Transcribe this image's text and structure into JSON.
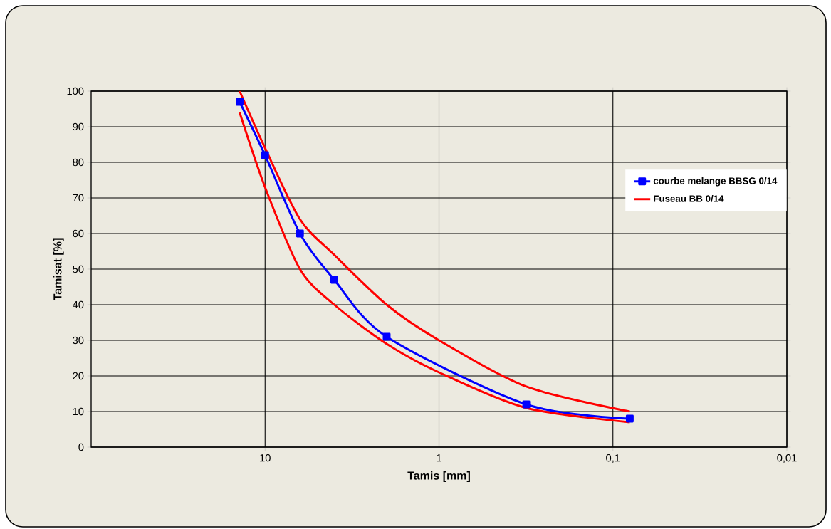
{
  "chart_data": {
    "type": "line",
    "xlabel": "Tamis [mm]",
    "ylabel": "Tamisat [%]",
    "xlim": [
      100,
      0.01
    ],
    "ylim": [
      0,
      100
    ],
    "log": "x",
    "xticks": [
      10,
      1,
      {
        "value": 0.1,
        "label": "0,1"
      },
      {
        "value": 0.01,
        "label": "0,01"
      }
    ],
    "yticks": [
      0,
      10,
      20,
      30,
      40,
      50,
      60,
      70,
      80,
      90,
      100
    ],
    "grid": true,
    "legend": "right",
    "series": [
      {
        "name": "courbe melange  BBSG 0/14",
        "color": "#0000ff",
        "marker": "square",
        "x": [
          14,
          10,
          6.3,
          4,
          2,
          0.315,
          0.08
        ],
        "values": [
          97,
          82,
          60,
          47,
          31,
          12,
          8
        ]
      },
      {
        "name": "Fuseau  BB 0/14",
        "color": "#ff0000",
        "marker": "none",
        "x": [
          14,
          10,
          6.3,
          4,
          2,
          1,
          0.315,
          0.08
        ],
        "values": [
          100,
          84,
          64,
          54,
          40,
          30,
          17,
          10
        ]
      },
      {
        "color": "#ff0000",
        "marker": "none",
        "x": [
          14,
          10,
          6.3,
          4,
          2,
          1,
          0.315,
          0.08
        ],
        "values": [
          94,
          73,
          50,
          40,
          29,
          21,
          11,
          7
        ]
      }
    ]
  }
}
